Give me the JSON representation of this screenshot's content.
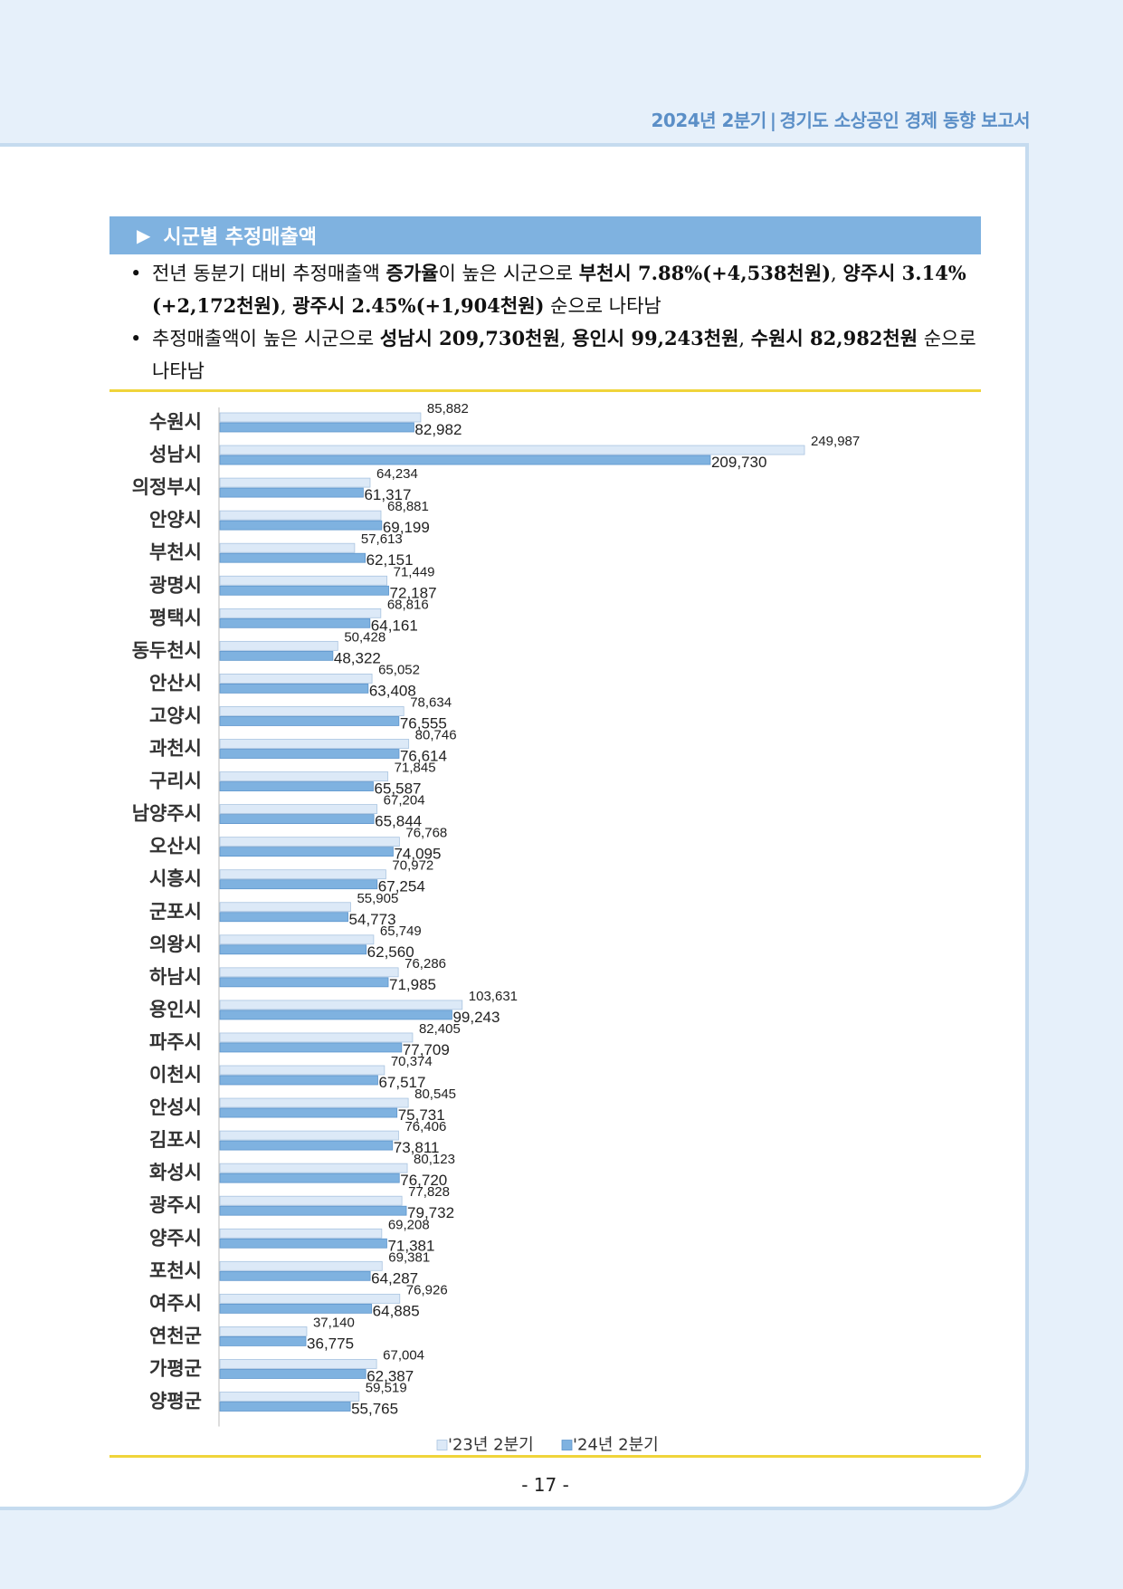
{
  "header": {
    "period": "2024년 2분기",
    "separator": "|",
    "title": "경기도 소상공인 경제 동향 보고서"
  },
  "section": {
    "marker": "▶",
    "title": "시군별 추정매출액"
  },
  "bullets": [
    {
      "dot": "•",
      "parts": [
        {
          "t": "전년 동분기 대비 추정매출액 ",
          "b": false
        },
        {
          "t": "증가율",
          "b": true
        },
        {
          "t": "이 높은 시군으로 ",
          "b": false
        },
        {
          "t": "부천시 7.88%(+4,538천원)",
          "b": true
        },
        {
          "t": ", ",
          "b": false
        },
        {
          "t": "양주시 3.14%(+2,172천원)",
          "b": true
        },
        {
          "t": ", ",
          "b": false
        },
        {
          "t": "광주시 2.45%(+1,904천원)",
          "b": true
        },
        {
          "t": " 순으로 나타남",
          "b": false
        }
      ]
    },
    {
      "dot": "•",
      "parts": [
        {
          "t": "추정매출액이 높은 시군으로 ",
          "b": false
        },
        {
          "t": "성남시 209,730천원",
          "b": true
        },
        {
          "t": ", ",
          "b": false
        },
        {
          "t": "용인시 99,243천원",
          "b": true
        },
        {
          "t": ", ",
          "b": false
        },
        {
          "t": "수원시 82,982천원",
          "b": true
        },
        {
          "t": " 순으로 나타남",
          "b": false
        }
      ]
    }
  ],
  "chart_data": {
    "type": "bar",
    "orientation": "horizontal",
    "categories": [
      "수원시",
      "성남시",
      "의정부시",
      "안양시",
      "부천시",
      "광명시",
      "평택시",
      "동두천시",
      "안산시",
      "고양시",
      "과천시",
      "구리시",
      "남양주시",
      "오산시",
      "시흥시",
      "군포시",
      "의왕시",
      "하남시",
      "용인시",
      "파주시",
      "이천시",
      "안성시",
      "김포시",
      "화성시",
      "광주시",
      "양주시",
      "포천시",
      "여주시",
      "연천군",
      "가평군",
      "양평군"
    ],
    "series": [
      {
        "name": "'23년 2분기",
        "color": "#dce9f7",
        "stroke": "#a9c4e0",
        "values": [
          85882,
          249987,
          64234,
          68881,
          57613,
          71449,
          68816,
          50428,
          65052,
          78634,
          80746,
          71845,
          67204,
          76768,
          70972,
          55905,
          65749,
          76286,
          103631,
          82405,
          70374,
          80545,
          76406,
          80123,
          77828,
          69208,
          69381,
          76926,
          37140,
          67004,
          59519
        ],
        "labels": [
          "85,882",
          "249,987",
          "64,234",
          "68,881",
          "57,613",
          "71,449",
          "68,816",
          "50,428",
          "65,052",
          "78,634",
          "80,746",
          "71,845",
          "67,204",
          "76,768",
          "70,972",
          "55,905",
          "65,749",
          "76,286",
          "103,631",
          "82,405",
          "70,374",
          "80,545",
          "76,406",
          "80,123",
          "77,828",
          "69,208",
          "69,381",
          "76,926",
          "37,140",
          "67,004",
          "59,519"
        ]
      },
      {
        "name": "'24년 2분기",
        "color": "#7fb2e0",
        "stroke": "#5d95cc",
        "values": [
          82982,
          209730,
          61317,
          69199,
          62151,
          72187,
          64161,
          48322,
          63408,
          76555,
          76614,
          65587,
          65844,
          74095,
          67254,
          54773,
          62560,
          71985,
          99243,
          77709,
          67517,
          75731,
          73811,
          76720,
          79732,
          71381,
          64287,
          64885,
          36775,
          62387,
          55765
        ],
        "labels": [
          "82,982",
          "209,730",
          "61,317",
          "69,199",
          "62,151",
          "72,187",
          "64,161",
          "48,322",
          "63,408",
          "76,555",
          "76,614",
          "65,587",
          "65,844",
          "74,095",
          "67,254",
          "54,773",
          "62,560",
          "71,985",
          "99,243",
          "77,709",
          "67,517",
          "75,731",
          "73,811",
          "76,720",
          "79,732",
          "71,381",
          "64,287",
          "64,885",
          "36,775",
          "62,387",
          "55,765"
        ]
      }
    ],
    "xlim": [
      0,
      300000
    ],
    "legend": "bottom"
  },
  "page_number": "- 17 -"
}
